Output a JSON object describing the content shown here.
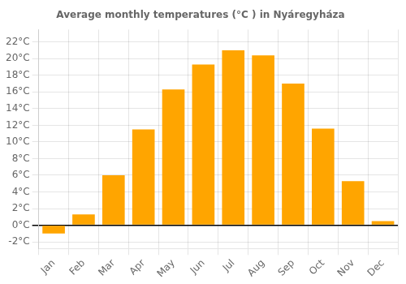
{
  "chart_data": {
    "type": "bar",
    "title": "Average monthly temperatures (°C ) in Nyáregyháza",
    "categories": [
      "Jan",
      "Feb",
      "Mar",
      "Apr",
      "May",
      "Jun",
      "Jul",
      "Aug",
      "Sep",
      "Oct",
      "Nov",
      "Dec"
    ],
    "values": [
      -1.0,
      1.3,
      6.0,
      11.5,
      16.3,
      19.3,
      21.0,
      20.4,
      17.0,
      11.6,
      5.3,
      0.5
    ],
    "color": "#FFA500",
    "ylim": [
      -2.8,
      23.5
    ],
    "yticks": [
      {
        "value": -2,
        "label": "-2°C"
      },
      {
        "value": 0,
        "label": "0°C"
      },
      {
        "value": 2,
        "label": "2°C"
      },
      {
        "value": 4,
        "label": "4°C"
      },
      {
        "value": 6,
        "label": "6°C"
      },
      {
        "value": 8,
        "label": "8°C"
      },
      {
        "value": 10,
        "label": "10°C"
      },
      {
        "value": 12,
        "label": "12°C"
      },
      {
        "value": 14,
        "label": "14°C"
      },
      {
        "value": 16,
        "label": "16°C"
      },
      {
        "value": 18,
        "label": "18°C"
      },
      {
        "value": 20,
        "label": "20°C"
      },
      {
        "value": 22,
        "label": "22°C"
      }
    ],
    "grid": true
  }
}
